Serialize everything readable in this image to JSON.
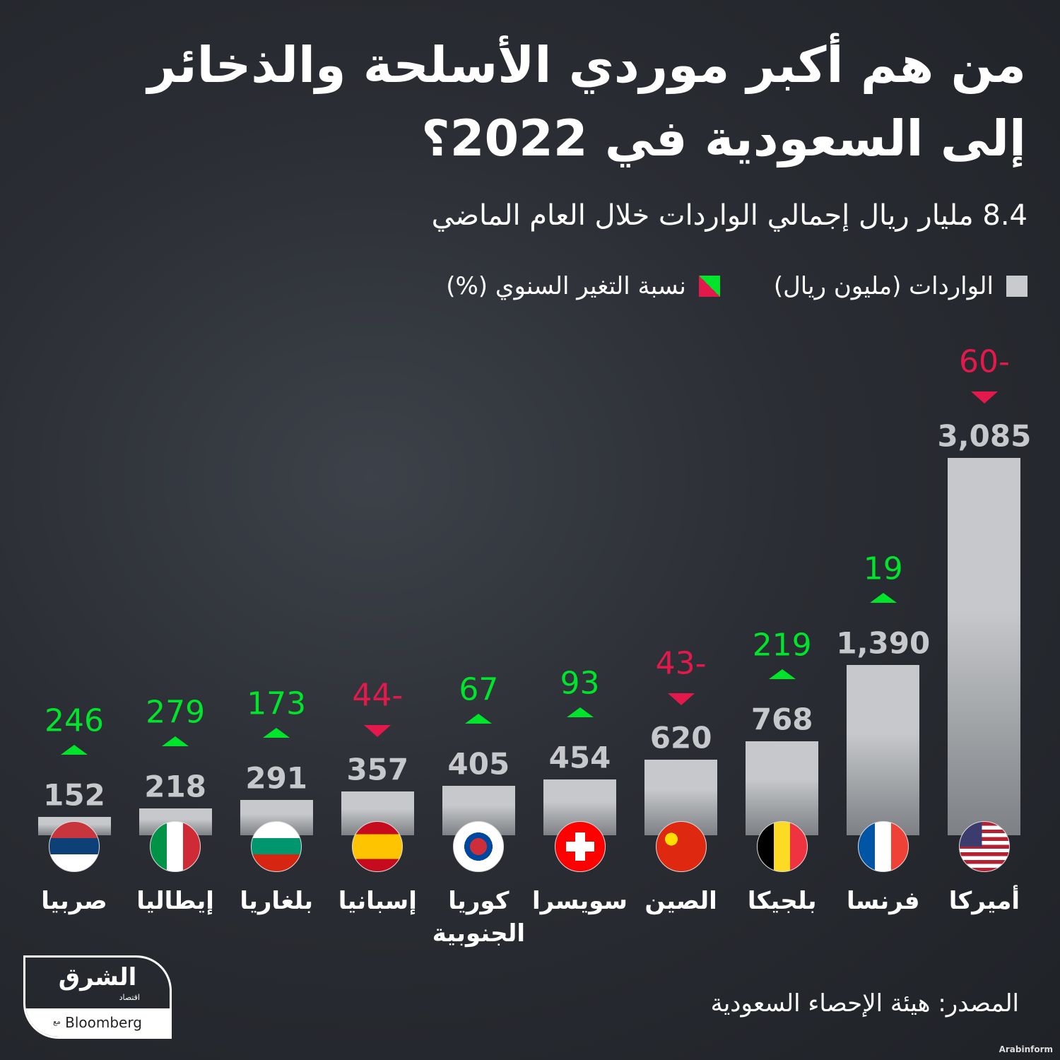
{
  "title": "من هم أكبر موردي الأسلحة والذخائر إلى السعودية في 2022؟",
  "subtitle": "8.4 مليار ريال إجمالي الواردات خلال العام الماضي",
  "legend": {
    "imports": "الواردات (مليون ريال)",
    "change": "نسبة التغير السنوي (%)"
  },
  "source": "المصدر: هيئة الإحصاء السعودية",
  "logo": {
    "brand": "الشرق",
    "sub": "اقتصاد",
    "with": "مع",
    "partner": "Bloomberg"
  },
  "credit": "Arabinform",
  "colors": {
    "bar": "#c6c8cb",
    "positive": "#00e52b",
    "negative": "#e3194b"
  },
  "chart_data": {
    "type": "bar",
    "categories": [
      "صربيا",
      "إيطاليا",
      "بلغاريا",
      "إسبانيا",
      "كوريا الجنوبية",
      "سويسرا",
      "الصين",
      "بلجيكا",
      "فرنسا",
      "أميركا"
    ],
    "series": [
      {
        "name": "الواردات (مليون ريال)",
        "values": [
          152,
          218,
          291,
          357,
          405,
          454,
          620,
          768,
          1390,
          3085
        ],
        "labels": [
          "152",
          "218",
          "291",
          "357",
          "405",
          "454",
          "620",
          "768",
          "1,390",
          "3,085"
        ]
      },
      {
        "name": "نسبة التغير السنوي (%)",
        "values": [
          246,
          279,
          173,
          -44,
          67,
          93,
          -43,
          219,
          19,
          -60
        ],
        "labels": [
          "246",
          "279",
          "173",
          "44-",
          "67",
          "93",
          "43-",
          "219",
          "19",
          "60-"
        ]
      }
    ],
    "flags": [
      "serbia-flag-icon",
      "italy-flag-icon",
      "bulgaria-flag-icon",
      "spain-flag-icon",
      "south-korea-flag-icon",
      "switzerland-flag-icon",
      "china-flag-icon",
      "belgium-flag-icon",
      "france-flag-icon",
      "usa-flag-icon"
    ],
    "ylim": [
      0,
      3085
    ]
  }
}
